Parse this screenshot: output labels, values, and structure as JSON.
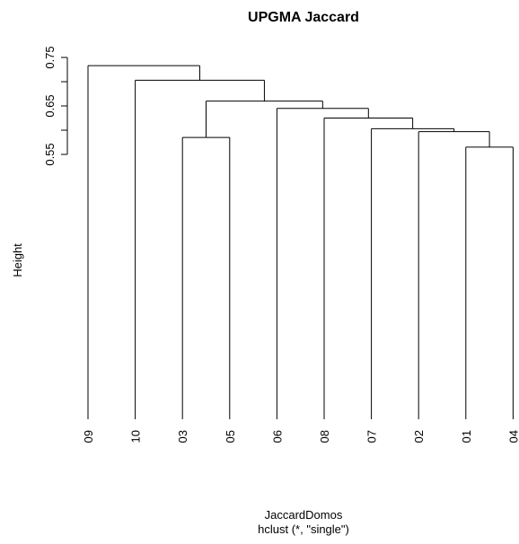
{
  "chart_data": {
    "type": "dendrogram",
    "title": "UPGMA Jaccard",
    "xlabel": "JaccardDomos",
    "subtitle": "hclust (*, \"single\")",
    "ylabel": "Height",
    "y_ticks": [
      "0.55",
      "0.65",
      "0.75"
    ],
    "y_tick_values": [
      0.55,
      0.65,
      0.75
    ],
    "leaves": [
      "09",
      "10",
      "03",
      "05",
      "06",
      "08",
      "07",
      "02",
      "01",
      "04"
    ],
    "merges": [
      {
        "left": "01",
        "right": "04",
        "height": 0.565
      },
      {
        "left": "02",
        "right": "01+04",
        "height": 0.597
      },
      {
        "left": "07",
        "right": "02+01+04",
        "height": 0.603
      },
      {
        "left": "08",
        "right": "07+02+01+04",
        "height": 0.625
      },
      {
        "left": "06",
        "right": "08+07+02+01+04",
        "height": 0.645
      },
      {
        "left": "03",
        "right": "05",
        "height": 0.585
      },
      {
        "left": "03+05",
        "right": "06+08+07+02+01+04",
        "height": 0.66
      },
      {
        "left": "10",
        "right": "03+05+06+08+07+02+01+04",
        "height": 0.703
      },
      {
        "left": "09",
        "right": "10+03+05+06+08+07+02+01+04",
        "height": 0.733
      }
    ],
    "leaf_height": 0.0
  }
}
